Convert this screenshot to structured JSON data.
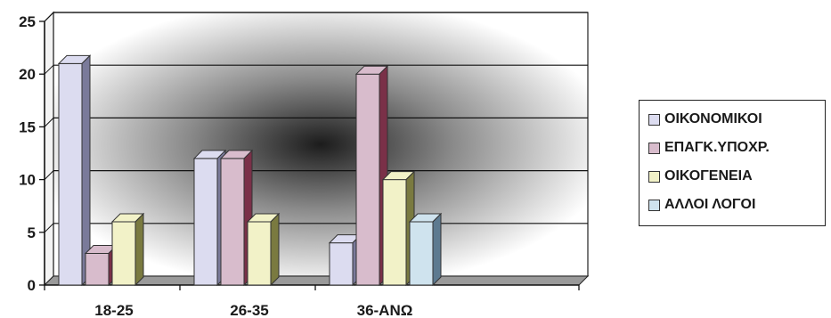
{
  "chart_data": {
    "type": "bar",
    "categories": [
      "18-25",
      "26-35",
      "36-ΑΝΩ"
    ],
    "series": [
      {
        "name": "ΟΙΚΟΝΟΜΙΚΟΙ",
        "values": [
          21,
          12,
          4
        ],
        "color": "#dcdcf0"
      },
      {
        "name": "ΕΠΑΓΚ.ΥΠΟΧΡ.",
        "values": [
          3,
          12,
          20
        ],
        "color": "#d8bccc"
      },
      {
        "name": "ΟΙΚΟΓΕΝΕΙΑ",
        "values": [
          6,
          6,
          10
        ],
        "color": "#f2f2c8"
      },
      {
        "name": "ΑΛΛΟΙ ΛΟΓΟΙ",
        "values": [
          0,
          0,
          6
        ],
        "color": "#cfe3ee"
      }
    ],
    "ylim": [
      0,
      25
    ],
    "yticks": [
      0,
      5,
      10,
      15,
      20,
      25
    ],
    "grid": true,
    "legend_position": "right"
  }
}
